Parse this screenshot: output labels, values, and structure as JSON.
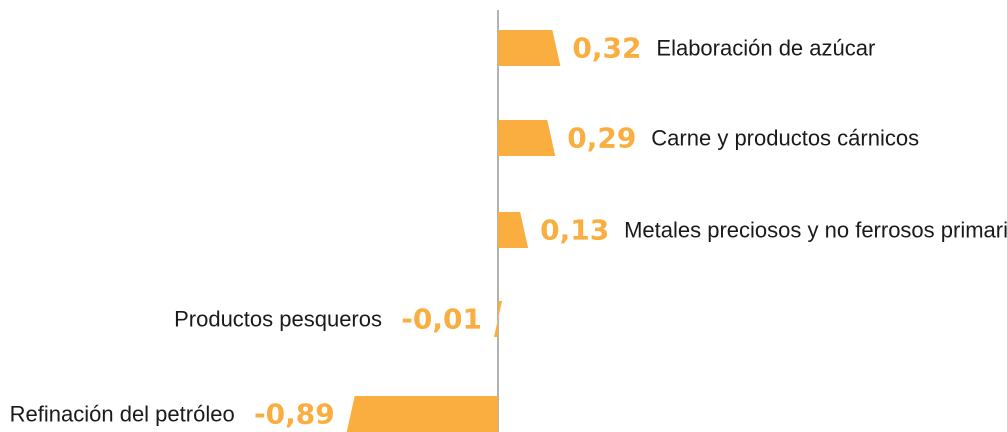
{
  "chart_data": {
    "type": "bar",
    "orientation": "horizontal",
    "categories": [
      "Elaboración de azúcar",
      "Carne y productos cárnicos",
      "Metales preciosos y no ferrosos primarios",
      "Productos pesqueros",
      "Refinación del petróleo"
    ],
    "values": [
      0.32,
      0.29,
      0.13,
      -0.01,
      -0.89
    ],
    "value_labels": [
      "0,32",
      "0,29",
      "0,13",
      "-0,01",
      "-0,89"
    ],
    "title": "",
    "xlabel": "",
    "ylabel": "",
    "xlim": [
      -0.89,
      0.32
    ],
    "grid": false,
    "legend": "none",
    "colors": {
      "bar": "#F9AE3F",
      "value_label": "#F9AE3F",
      "axis": "#999999",
      "category_text": "#1a1a1a"
    }
  }
}
